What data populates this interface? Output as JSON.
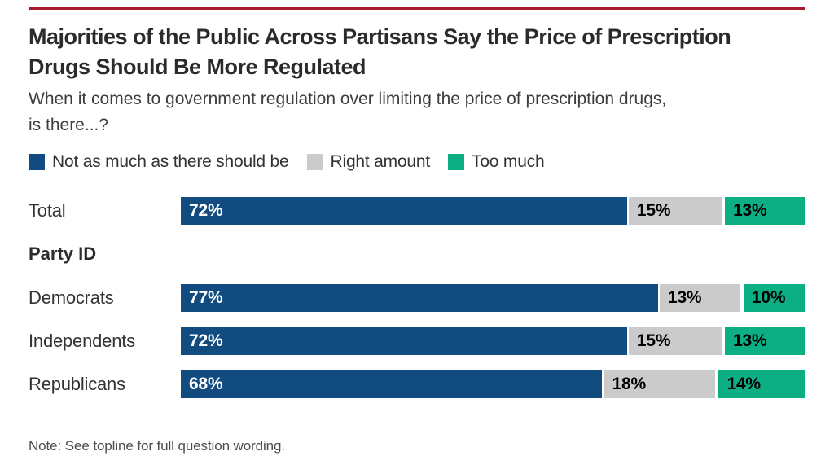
{
  "page": {
    "accent_rule_color": "#A6192E",
    "background_color": "#FFFFFF"
  },
  "title_lines": [
    "Majorities of the Public Across Partisans Say the Price of Prescription",
    "Drugs Should Be More Regulated"
  ],
  "subtitle_lines": [
    "When it comes to government regulation over limiting the price of prescription drugs,",
    "is there...?"
  ],
  "legend": {
    "items": [
      {
        "label": "Not as much as there should be",
        "color": "#114B80"
      },
      {
        "label": "Right amount",
        "color": "#CBCBCB"
      },
      {
        "label": "Too much",
        "color": "#0CAE84"
      }
    ]
  },
  "note": "Note: See topline for full question wording.",
  "chart_data": {
    "type": "bar",
    "orientation": "horizontal",
    "stacked": true,
    "unit": "%",
    "xlim": [
      0,
      100
    ],
    "value_labels": "inside-start",
    "title": "Majorities of the Public Across Partisans Say the Price of Prescription Drugs Should Be More Regulated",
    "subtitle": "When it comes to government regulation over limiting the price of prescription drugs, is there...?",
    "series_names": [
      "Not as much as there should be",
      "Right amount",
      "Too much"
    ],
    "series_colors": [
      "#114B80",
      "#CBCBCB",
      "#0CAE84"
    ],
    "rows": [
      {
        "type": "bar",
        "label": "Total",
        "values": [
          72,
          15,
          13
        ]
      },
      {
        "type": "header",
        "label": "Party ID"
      },
      {
        "type": "bar",
        "label": "Democrats",
        "values": [
          77,
          13,
          10
        ]
      },
      {
        "type": "bar",
        "label": "Independents",
        "values": [
          72,
          15,
          13
        ]
      },
      {
        "type": "bar",
        "label": "Republicans",
        "values": [
          68,
          18,
          14
        ]
      }
    ]
  }
}
